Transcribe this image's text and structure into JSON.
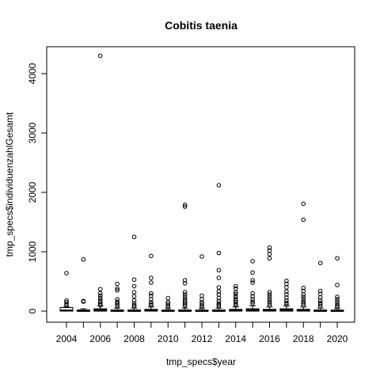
{
  "chart_data": {
    "type": "boxplot",
    "title": "Cobitis taenia",
    "xlabel": "tmp_specs$year",
    "ylabel": "tmp_specs$individuenzahlGesamt",
    "ylim": [
      -100,
      4300
    ],
    "y_ticks": [
      0,
      1000,
      2000,
      3000,
      4000
    ],
    "x_tick_labels": [
      "2004",
      "2006",
      "2008",
      "2010",
      "2012",
      "2014",
      "2016",
      "2018",
      "2020"
    ],
    "grid": false,
    "legend": "none",
    "categories": [
      "2004",
      "2005",
      "2006",
      "2007",
      "2008",
      "2009",
      "2010",
      "2011",
      "2012",
      "2013",
      "2014",
      "2015",
      "2016",
      "2017",
      "2018",
      "2019",
      "2020"
    ],
    "boxes": [
      {
        "year": "2004",
        "q1": 0,
        "median": 10,
        "q3": 60,
        "whisker_low": 0,
        "whisker_high": 70,
        "outliers": [
          640,
          180,
          150,
          120,
          100
        ]
      },
      {
        "year": "2005",
        "q1": 0,
        "median": 5,
        "q3": 20,
        "whisker_low": 0,
        "whisker_high": 40,
        "outliers": [
          870,
          170,
          160
        ]
      },
      {
        "year": "2006",
        "q1": 0,
        "median": 15,
        "q3": 40,
        "whisker_low": 0,
        "whisker_high": 90,
        "outliers": [
          4300,
          370,
          300,
          260,
          220,
          180,
          150,
          120,
          100
        ]
      },
      {
        "year": "2007",
        "q1": 0,
        "median": 5,
        "q3": 20,
        "whisker_low": 0,
        "whisker_high": 50,
        "outliers": [
          460,
          380,
          350,
          200,
          160,
          130,
          100,
          80
        ]
      },
      {
        "year": "2008",
        "q1": 0,
        "median": 5,
        "q3": 20,
        "whisker_low": 0,
        "whisker_high": 50,
        "outliers": [
          1250,
          530,
          420,
          320,
          250,
          180,
          130,
          100,
          80
        ]
      },
      {
        "year": "2009",
        "q1": 0,
        "median": 10,
        "q3": 30,
        "whisker_low": 0,
        "whisker_high": 70,
        "outliers": [
          930,
          560,
          480,
          300,
          260,
          200,
          150,
          120,
          100
        ]
      },
      {
        "year": "2010",
        "q1": 0,
        "median": 5,
        "q3": 15,
        "whisker_low": 0,
        "whisker_high": 40,
        "outliers": [
          220,
          150,
          120,
          90,
          70
        ]
      },
      {
        "year": "2011",
        "q1": 0,
        "median": 5,
        "q3": 20,
        "whisker_low": 0,
        "whisker_high": 50,
        "outliers": [
          1790,
          1760,
          520,
          470,
          320,
          280,
          240,
          200,
          170,
          140,
          110,
          90
        ]
      },
      {
        "year": "2012",
        "q1": 0,
        "median": 5,
        "q3": 15,
        "whisker_low": 0,
        "whisker_high": 40,
        "outliers": [
          920,
          260,
          200,
          150,
          120,
          90,
          70
        ]
      },
      {
        "year": "2013",
        "q1": 0,
        "median": 5,
        "q3": 20,
        "whisker_low": 0,
        "whisker_high": 50,
        "outliers": [
          2120,
          980,
          690,
          560,
          400,
          330,
          280,
          220,
          170,
          130,
          100,
          80
        ]
      },
      {
        "year": "2014",
        "q1": 0,
        "median": 10,
        "q3": 30,
        "whisker_low": 0,
        "whisker_high": 70,
        "outliers": [
          420,
          380,
          320,
          290,
          250,
          210,
          180,
          150,
          120,
          100
        ]
      },
      {
        "year": "2015",
        "q1": 0,
        "median": 15,
        "q3": 40,
        "whisker_low": 0,
        "whisker_high": 90,
        "outliers": [
          840,
          650,
          520,
          480,
          300,
          250,
          200,
          160,
          130
        ]
      },
      {
        "year": "2016",
        "q1": 0,
        "median": 10,
        "q3": 30,
        "whisker_low": 0,
        "whisker_high": 70,
        "outliers": [
          1070,
          1020,
          960,
          890,
          320,
          280,
          240,
          200,
          160,
          130,
          100
        ]
      },
      {
        "year": "2017",
        "q1": 0,
        "median": 15,
        "q3": 40,
        "whisker_low": 0,
        "whisker_high": 90,
        "outliers": [
          510,
          460,
          400,
          330,
          280,
          230,
          180,
          140,
          110
        ]
      },
      {
        "year": "2018",
        "q1": 0,
        "median": 10,
        "q3": 30,
        "whisker_low": 0,
        "whisker_high": 70,
        "outliers": [
          1810,
          1540,
          390,
          340,
          280,
          240,
          200,
          160,
          130,
          100
        ]
      },
      {
        "year": "2019",
        "q1": 0,
        "median": 5,
        "q3": 20,
        "whisker_low": 0,
        "whisker_high": 50,
        "outliers": [
          810,
          340,
          290,
          230,
          180,
          140,
          110,
          80
        ]
      },
      {
        "year": "2020",
        "q1": 0,
        "median": 5,
        "q3": 15,
        "whisker_low": 0,
        "whisker_high": 40,
        "outliers": [
          890,
          440,
          240,
          200,
          160,
          120,
          90,
          70
        ]
      }
    ]
  }
}
